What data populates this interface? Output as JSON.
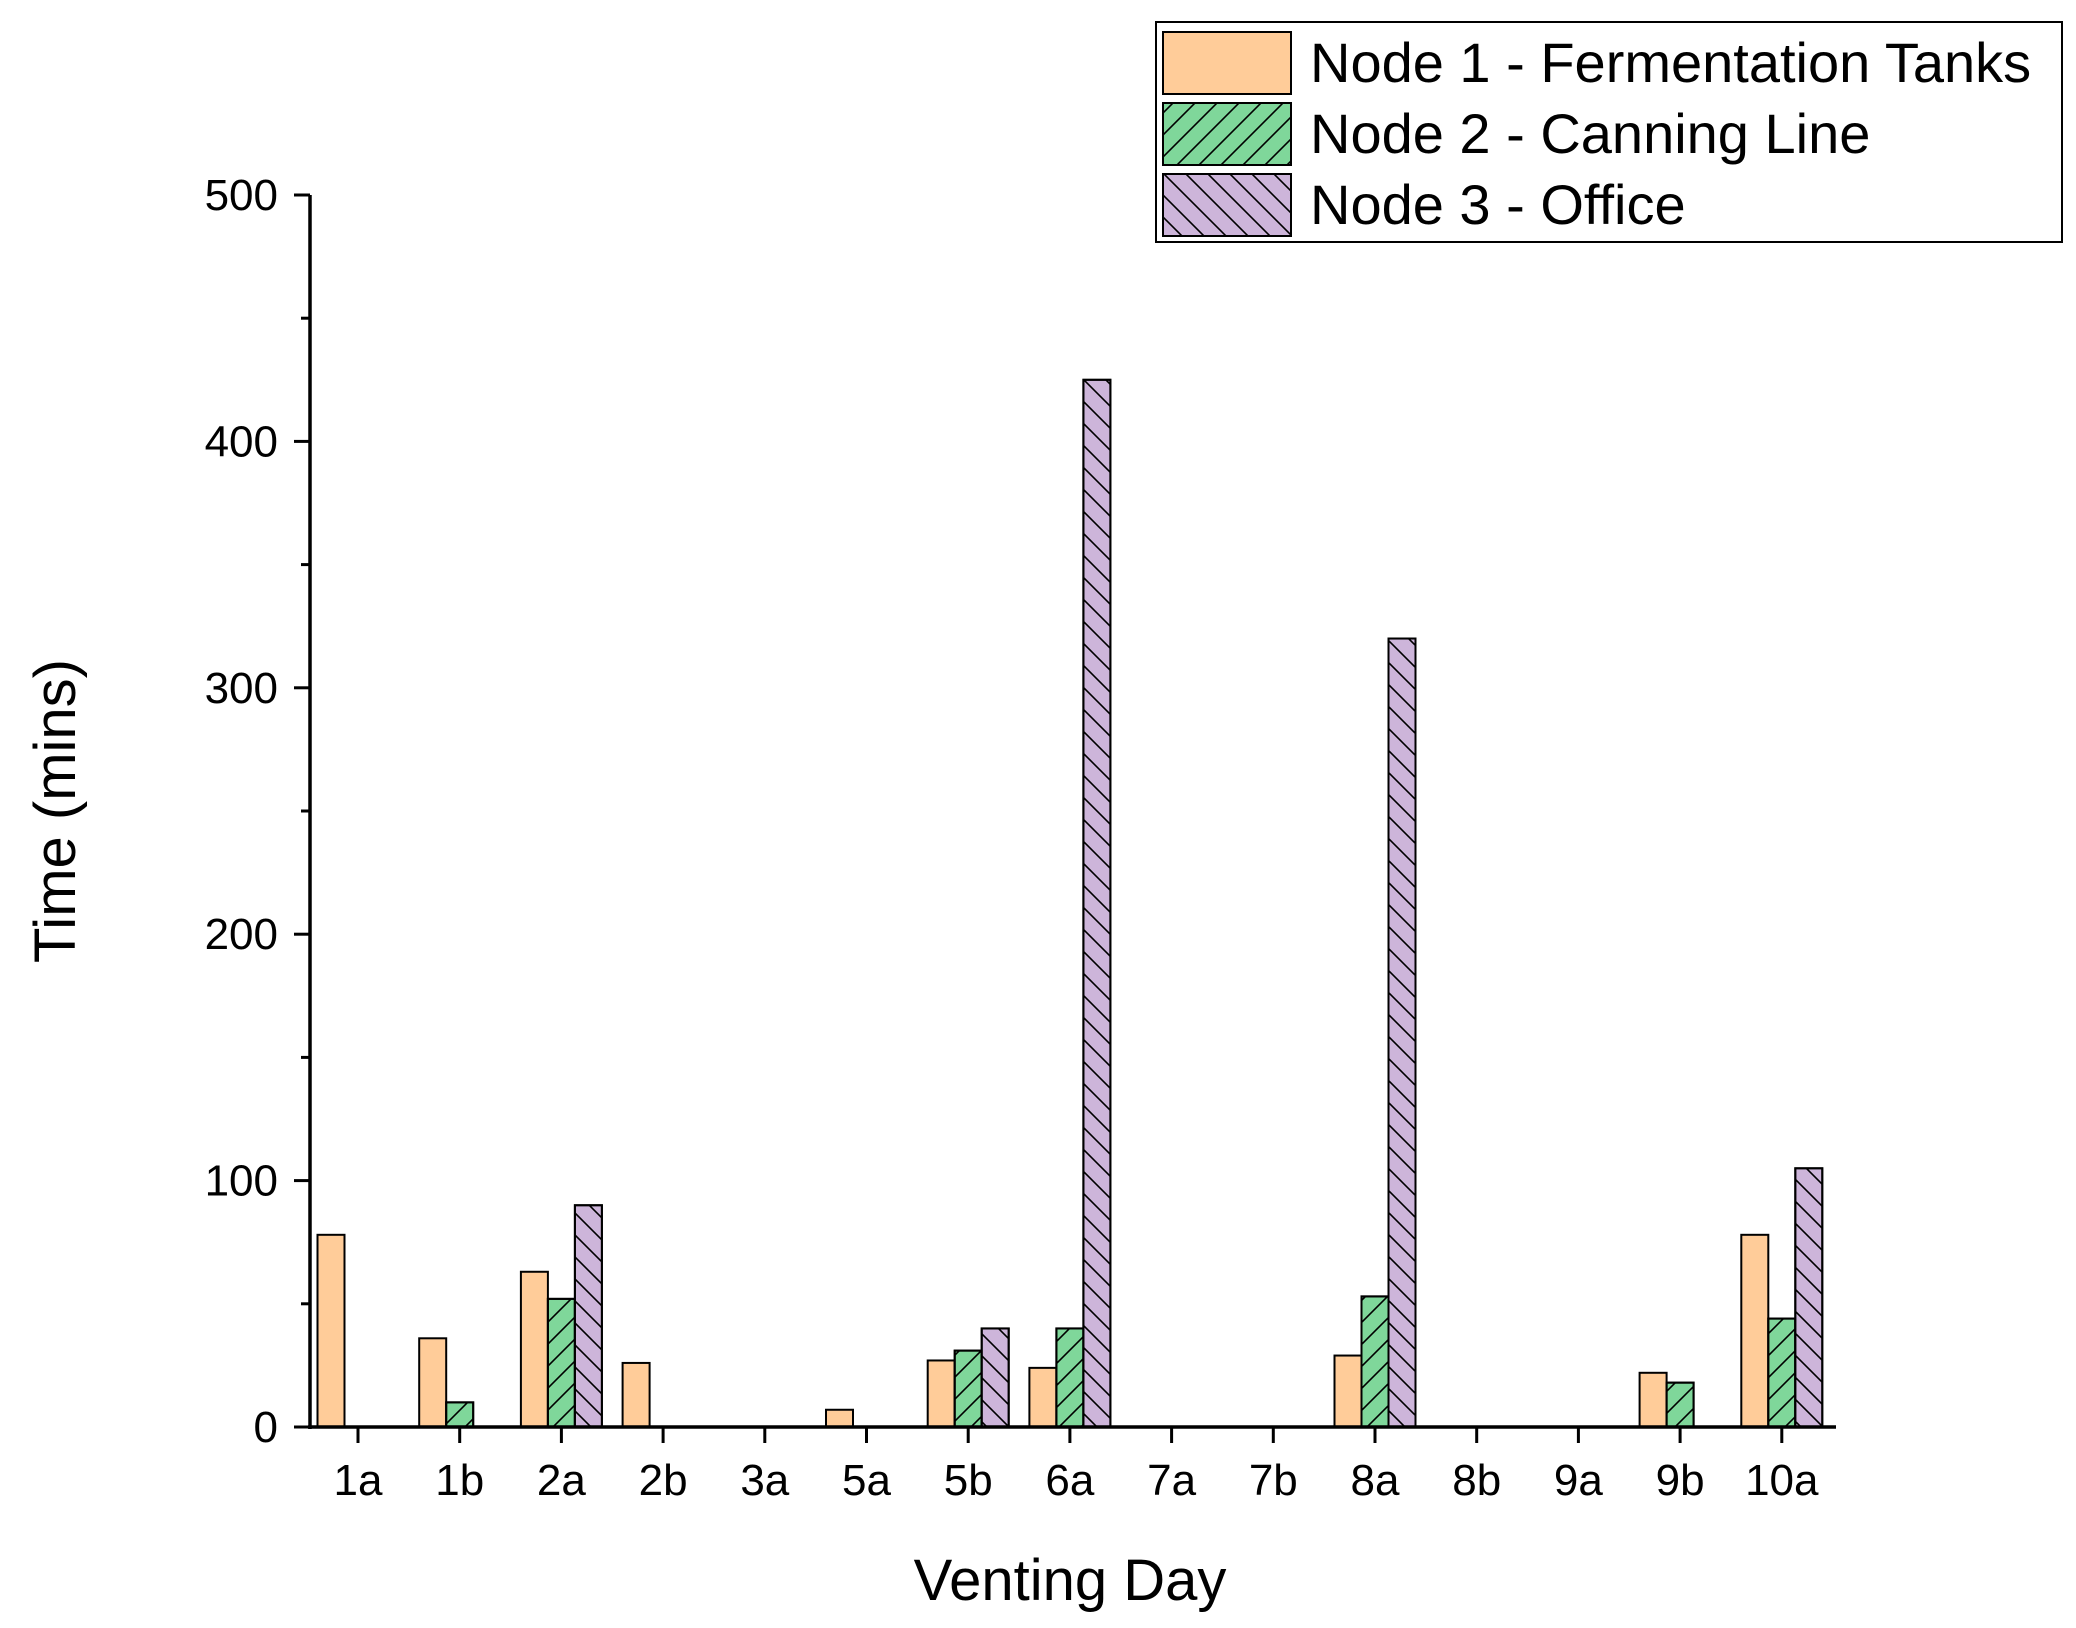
{
  "chart_data": {
    "type": "bar",
    "title": "",
    "xlabel": "Venting Day",
    "ylabel": "Time (mins)",
    "ylim": [
      0,
      500
    ],
    "yticks": [
      0,
      100,
      200,
      300,
      400,
      500
    ],
    "grid": false,
    "legend_position": "top-right",
    "categories": [
      "1a",
      "1b",
      "2a",
      "2b",
      "3a",
      "5a",
      "5b",
      "6a",
      "7a",
      "7b",
      "8a",
      "8b",
      "9a",
      "9b",
      "10a"
    ],
    "series": [
      {
        "name": "Node 1 - Fermentation Tanks",
        "color": "#FFCC99",
        "pattern": "none",
        "values": [
          78,
          36,
          63,
          26,
          0,
          7,
          27,
          24,
          0,
          0,
          29,
          0,
          0,
          22,
          78
        ]
      },
      {
        "name": "Node 2 - Canning Line",
        "color": "#7FD79A",
        "pattern": "forward-hatch",
        "values": [
          0,
          10,
          52,
          0,
          0,
          0,
          31,
          40,
          0,
          0,
          53,
          0,
          0,
          18,
          44
        ]
      },
      {
        "name": "Node 3 - Office",
        "color": "#CDB5DA",
        "pattern": "back-hatch",
        "values": [
          0,
          0,
          90,
          0,
          0,
          0,
          40,
          425,
          0,
          0,
          320,
          0,
          0,
          0,
          105
        ]
      }
    ]
  }
}
